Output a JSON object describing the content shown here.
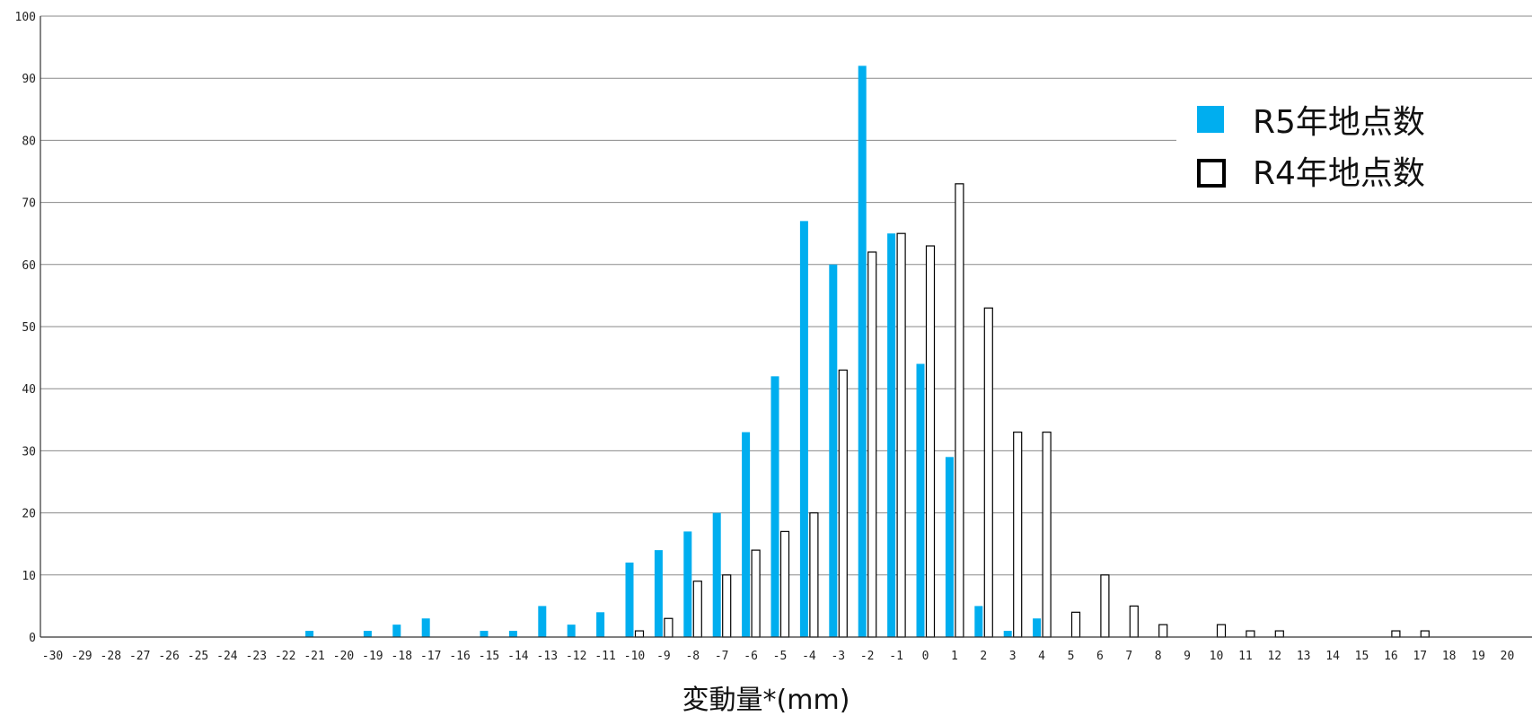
{
  "chart_data": {
    "type": "bar",
    "xlabel": "変動量*(mm)",
    "ylabel": "",
    "ylim": [
      0,
      100
    ],
    "yticks": [
      0,
      10,
      20,
      30,
      40,
      50,
      60,
      70,
      80,
      90,
      100
    ],
    "categories": [
      "-30",
      "-29",
      "-28",
      "-27",
      "-26",
      "-25",
      "-24",
      "-23",
      "-22",
      "-21",
      "-20",
      "-19",
      "-18",
      "-17",
      "-16",
      "-15",
      "-14",
      "-13",
      "-12",
      "-11",
      "-10",
      "-9",
      "-8",
      "-7",
      "-6",
      "-5",
      "-4",
      "-3",
      "-2",
      "-1",
      "0",
      "1",
      "2",
      "3",
      "4",
      "5",
      "6",
      "7",
      "8",
      "9",
      "10",
      "11",
      "12",
      "13",
      "14",
      "15",
      "16",
      "17",
      "18",
      "19",
      "20"
    ],
    "series": [
      {
        "name": "R5年地点数",
        "color": "#00aeef",
        "style": "filled",
        "values": [
          0,
          0,
          0,
          0,
          0,
          0,
          0,
          0,
          0,
          1,
          0,
          1,
          2,
          3,
          0,
          1,
          1,
          5,
          2,
          4,
          12,
          14,
          17,
          20,
          33,
          42,
          67,
          60,
          92,
          65,
          44,
          29,
          5,
          1,
          3,
          0,
          0,
          0,
          0,
          0,
          0,
          0,
          0,
          0,
          0,
          0,
          0,
          0,
          0,
          0,
          0
        ]
      },
      {
        "name": "R4年地点数",
        "color": "#000000",
        "style": "outline",
        "values": [
          0,
          0,
          0,
          0,
          0,
          0,
          0,
          0,
          0,
          0,
          0,
          0,
          0,
          0,
          0,
          0,
          0,
          0,
          0,
          0,
          1,
          3,
          9,
          10,
          14,
          17,
          20,
          43,
          62,
          65,
          63,
          73,
          53,
          33,
          33,
          4,
          10,
          5,
          2,
          0,
          2,
          1,
          1,
          0,
          0,
          0,
          1,
          1,
          0,
          0,
          0
        ]
      }
    ],
    "grid": true,
    "legend": "top-right"
  }
}
